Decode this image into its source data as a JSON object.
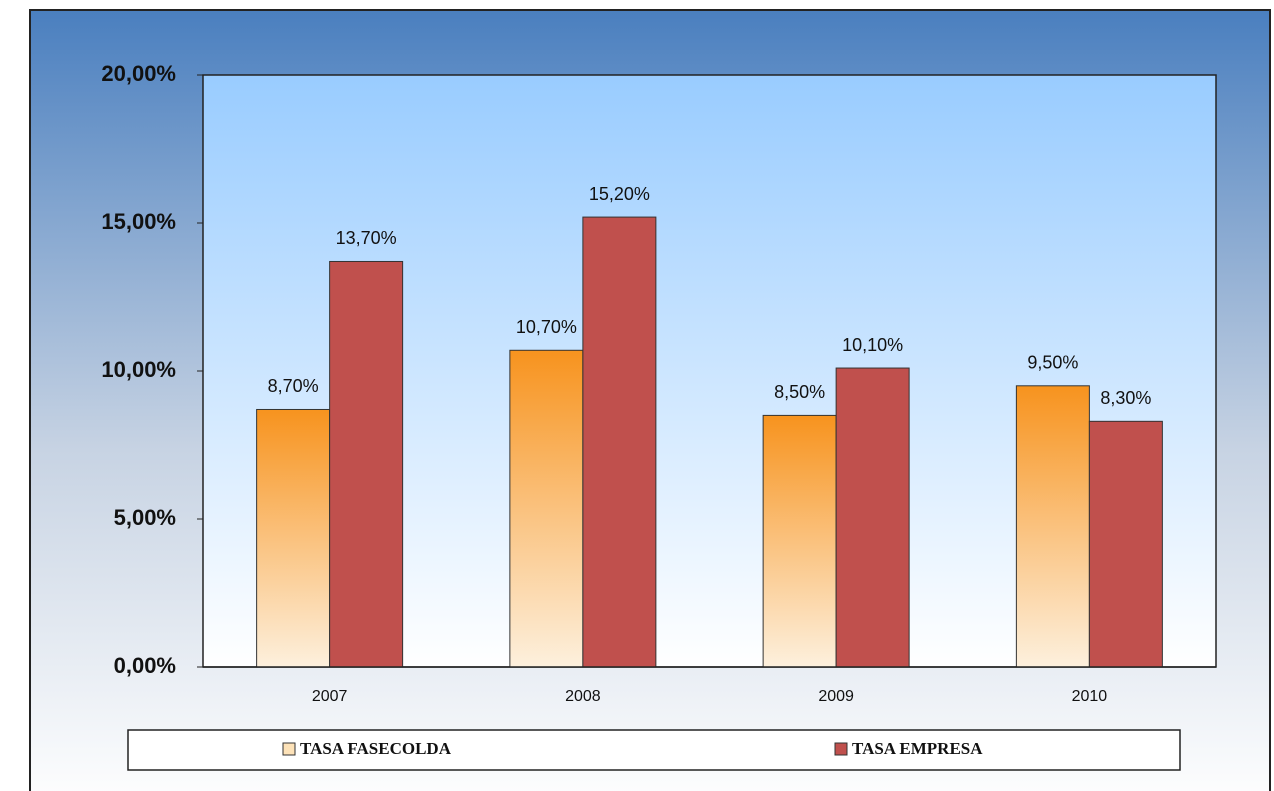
{
  "chart_data": {
    "type": "bar",
    "categories": [
      "2007",
      "2008",
      "2009",
      "2010"
    ],
    "series": [
      {
        "name": "TASA FASECOLDA",
        "color": "#f7931e",
        "values": [
          8.7,
          10.7,
          8.5,
          9.5
        ],
        "value_labels": [
          "8,70%",
          "10,70%",
          "8,50%",
          "9,50%"
        ]
      },
      {
        "name": "TASA EMPRESA",
        "color": "#c0504d",
        "values": [
          13.7,
          15.2,
          10.1,
          8.3
        ],
        "value_labels": [
          "13,70%",
          "15,20%",
          "10,10%",
          "8,30%"
        ]
      }
    ],
    "ylim": [
      0,
      20
    ],
    "yticks": [
      {
        "value": 0,
        "label": "0,00%"
      },
      {
        "value": 5,
        "label": "5,00%"
      },
      {
        "value": 10,
        "label": "10,00%"
      },
      {
        "value": 15,
        "label": "15,00%"
      },
      {
        "value": 20,
        "label": "20,00%"
      }
    ],
    "legend": "bottom"
  }
}
